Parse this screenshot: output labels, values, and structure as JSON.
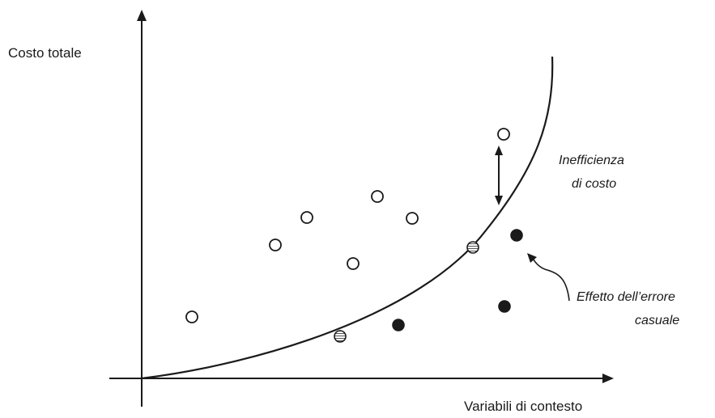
{
  "diagram": {
    "y_axis_label": "Costo totale",
    "x_axis_label": "Variabili di contesto",
    "annotations": {
      "inefficiency_line1": "Inefficienza",
      "inefficiency_line2": "di costo",
      "random_error_line1": "Effetto dell’errore",
      "random_error_line2": "casuale"
    },
    "observation_markers": {
      "above_frontier": "hollow-circle",
      "on_frontier": "hatched-circle",
      "below_frontier": "filled-circle"
    },
    "frontier_shape": "convex cost frontier (increasing, steepening)",
    "colors": {
      "ink": "#1a1a1a",
      "background": "#ffffff"
    }
  }
}
